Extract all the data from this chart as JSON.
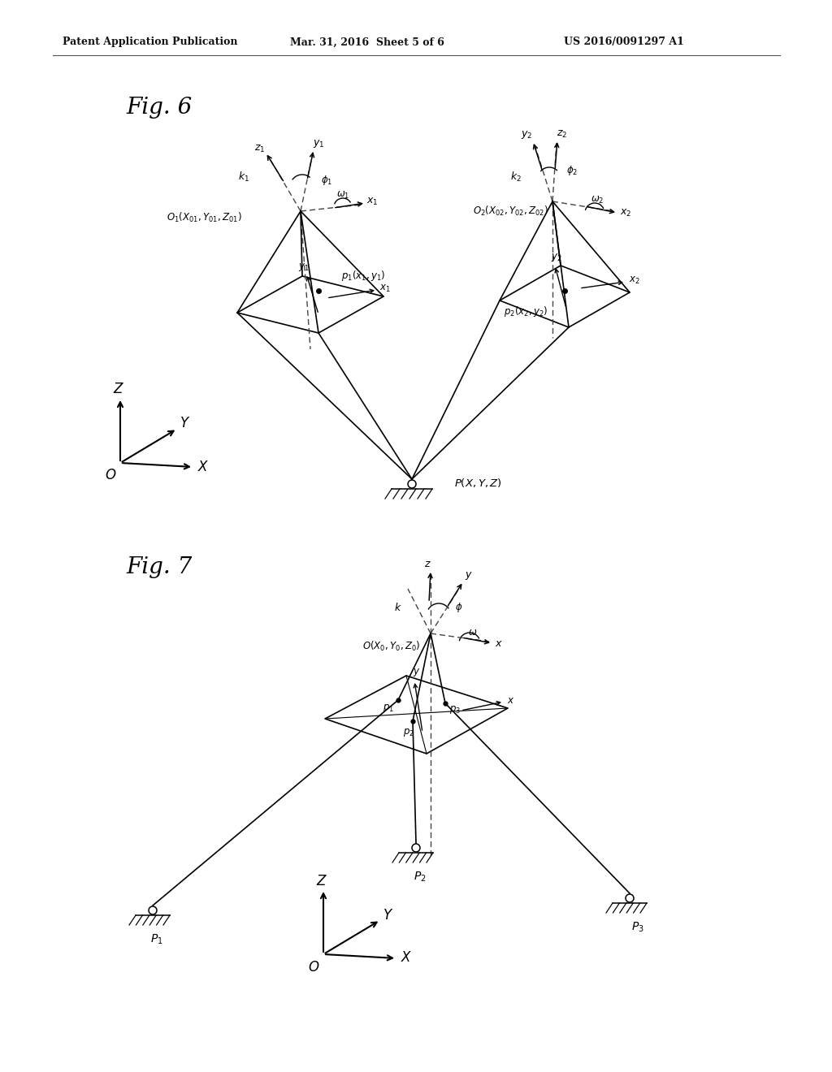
{
  "header_left": "Patent Application Publication",
  "header_center": "Mar. 31, 2016  Sheet 5 of 6",
  "header_right": "US 2016/0091297 A1",
  "fig6_label": "Fig. 6",
  "fig7_label": "Fig. 7",
  "bg_color": "#ffffff"
}
